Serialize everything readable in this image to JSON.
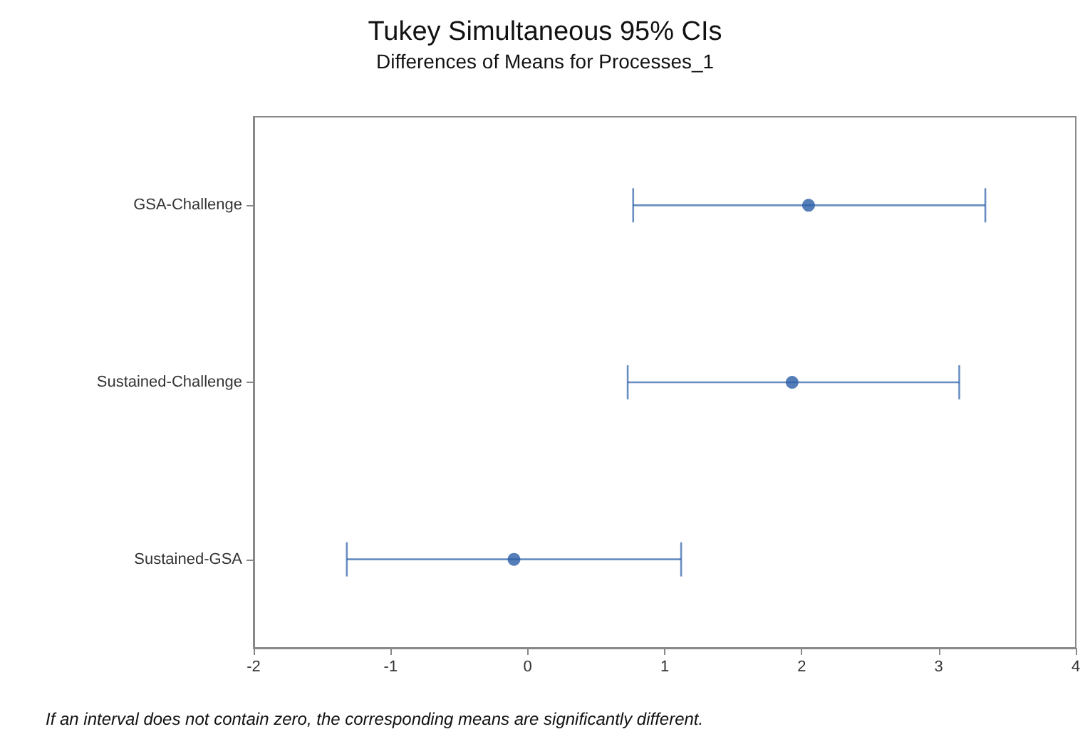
{
  "chart_data": {
    "type": "scatter",
    "title": "Tukey Simultaneous 95% CIs",
    "subtitle": "Differences of Means for Processes_1",
    "orientation": "horizontal",
    "categories": [
      "GSA-Challenge",
      "Sustained-Challenge",
      "Sustained-GSA"
    ],
    "series": [
      {
        "color": "#2a5ea8",
        "values": [
          2.05,
          1.93,
          -0.1
        ],
        "errors": [
          [
            0.77,
            3.34
          ],
          [
            0.73,
            3.15
          ],
          [
            -1.32,
            1.12
          ]
        ]
      }
    ],
    "xlim": [
      -2,
      4
    ],
    "xticks": [
      -2,
      -1,
      0,
      1,
      2,
      3,
      4
    ],
    "grid": false,
    "marker": "circle",
    "annotations": [
      "If an interval does not contain zero, the corresponding means are significantly different."
    ]
  }
}
